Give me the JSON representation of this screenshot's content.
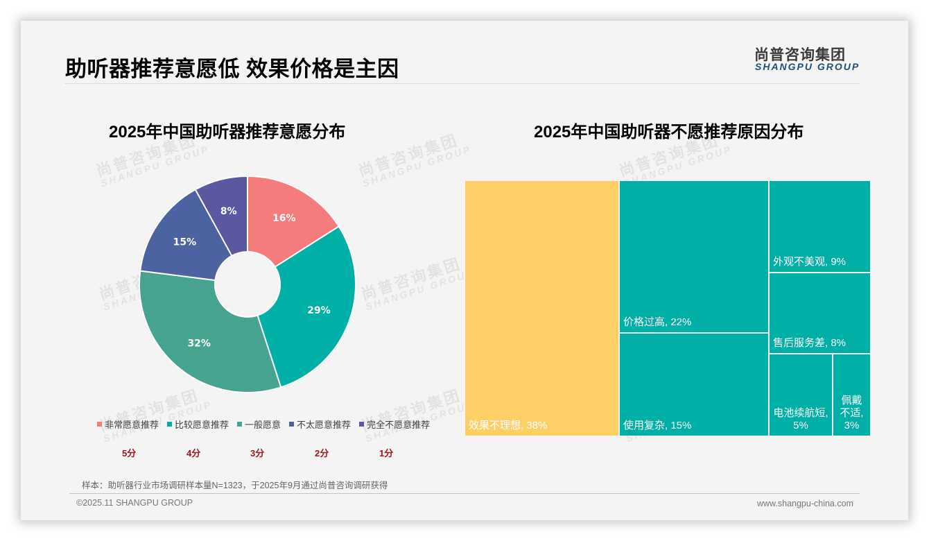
{
  "header": {
    "title": "助听器推荐意愿低 效果价格是主因",
    "logo_cn": "尚普咨询集团",
    "logo_en": "SHANGPU GROUP"
  },
  "watermark": {
    "cn": "尚普咨询集团",
    "en": "SHANGPU GROUP"
  },
  "left_chart": {
    "title": "2025年中国助听器推荐意愿分布",
    "legend": [
      {
        "label": "非常愿意推荐",
        "score": "5分",
        "color": "#f47c7c"
      },
      {
        "label": "比较愿意推荐",
        "score": "4分",
        "color": "#00b0a6"
      },
      {
        "label": "一般愿意",
        "score": "3分",
        "color": "#45a38f"
      },
      {
        "label": "不太愿意推荐",
        "score": "2分",
        "color": "#4d62a0"
      },
      {
        "label": "完全不愿意推荐",
        "score": "1分",
        "color": "#5b57a1"
      }
    ]
  },
  "right_chart": {
    "title": "2025年中国助听器不愿推荐原因分布"
  },
  "chart_data": [
    {
      "type": "pie",
      "subtype": "donut",
      "title": "2025年中国助听器推荐意愿分布",
      "categories": [
        "非常愿意推荐",
        "比较愿意推荐",
        "一般愿意",
        "不太愿意推荐",
        "完全不愿意推荐"
      ],
      "values": [
        16,
        29,
        32,
        15,
        8
      ],
      "labels": [
        "16%",
        "29%",
        "32%",
        "15%",
        "8%"
      ],
      "scores": [
        "5分",
        "4分",
        "3分",
        "2分",
        "1分"
      ],
      "colors": [
        "#f47c7c",
        "#00b0a6",
        "#45a38f",
        "#4d62a0",
        "#5b57a1"
      ],
      "legend_position": "bottom"
    },
    {
      "type": "treemap",
      "title": "2025年中国助听器不愿推荐原因分布",
      "categories": [
        "效果不理想",
        "价格过高",
        "使用复杂",
        "外观不美观",
        "售后服务差",
        "电池续航短",
        "佩戴不适"
      ],
      "values": [
        38,
        22,
        15,
        9,
        8,
        5,
        3
      ],
      "labels": [
        "效果不理想, 38%",
        "价格过高, 22%",
        "使用复杂, 15%",
        "外观不美观, 9%",
        "售后服务差, 8%",
        "电池续航短, 5%",
        "佩戴不适, 3%"
      ],
      "colors": [
        "#fdd067",
        "#00b0a6",
        "#00b0a6",
        "#00b0a6",
        "#00b0a6",
        "#00b0a6",
        "#00b0a6"
      ]
    }
  ],
  "footer": {
    "note": "样本：助听器行业市场调研样本量N=1323，于2025年9月通过尚普咨询调研获得",
    "copyright": "©2025.11 SHANGPU GROUP",
    "website": "www.shangpu-china.com"
  }
}
